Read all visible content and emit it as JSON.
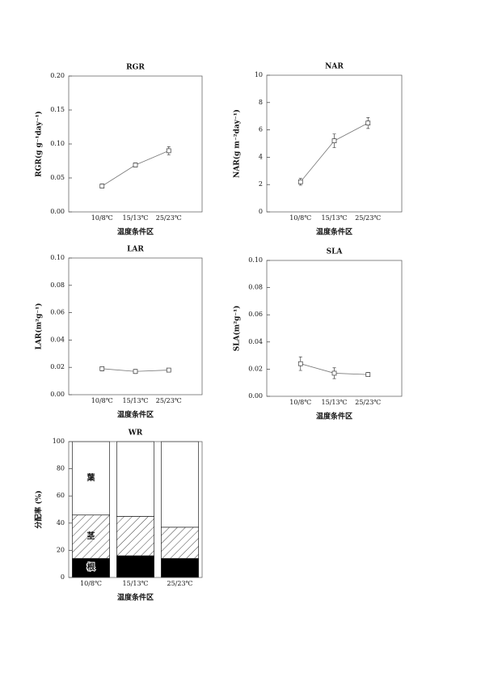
{
  "chart_data": [
    {
      "type": "line",
      "title": "RGR",
      "ylabel": "RGR(g g⁻¹day⁻¹)",
      "xlabel": "温度条件区",
      "categories": [
        "10/8℃",
        "15/13℃",
        "25/23℃"
      ],
      "values": [
        0.038,
        0.069,
        0.09
      ],
      "errors": [
        0.003,
        0.003,
        0.006
      ],
      "color": "#777777",
      "ylim": [
        0,
        0.2
      ],
      "yticks": [
        {
          "value": 0,
          "label": "0.00"
        },
        {
          "value": 0.05,
          "label": "0.05"
        },
        {
          "value": 0.1,
          "label": "0.10"
        },
        {
          "value": 0.15,
          "label": "0.15"
        },
        {
          "value": 0.2,
          "label": "0.20"
        }
      ]
    },
    {
      "type": "line",
      "title": "NAR",
      "ylabel": "NAR(g m⁻²day⁻¹)",
      "xlabel": "温度条件区",
      "categories": [
        "10/8℃",
        "15/13℃",
        "25/23℃"
      ],
      "values": [
        2.2,
        5.2,
        6.5
      ],
      "errors": [
        0.25,
        0.5,
        0.4
      ],
      "color": "#777777",
      "ylim": [
        0,
        10
      ],
      "yticks": [
        0,
        2,
        4,
        6,
        8,
        10
      ]
    },
    {
      "type": "line",
      "title": "LAR",
      "ylabel": "LAR(m²g⁻¹)",
      "xlabel": "温度条件区",
      "categories": [
        "10/8℃",
        "15/13℃",
        "25/23℃"
      ],
      "values": [
        0.019,
        0.017,
        0.018
      ],
      "errors": [
        0.0015,
        0.0015,
        0.001
      ],
      "color": "#777777",
      "ylim": [
        0,
        0.1
      ],
      "yticks": [
        {
          "value": 0,
          "label": "0.00"
        },
        {
          "value": 0.02,
          "label": "0.02"
        },
        {
          "value": 0.04,
          "label": "0.04"
        },
        {
          "value": 0.06,
          "label": "0.06"
        },
        {
          "value": 0.08,
          "label": "0.08"
        },
        {
          "value": 0.1,
          "label": "0.10"
        }
      ]
    },
    {
      "type": "line",
      "title": "SLA",
      "ylabel": "SLA(m²g⁻¹)",
      "xlabel": "温度条件区",
      "categories": [
        "10/8℃",
        "15/13℃",
        "25/23℃"
      ],
      "values": [
        0.024,
        0.017,
        0.016
      ],
      "errors": [
        0.005,
        0.004,
        0.0015
      ],
      "color": "#777777",
      "ylim": [
        0,
        0.1
      ],
      "yticks": [
        {
          "value": 0,
          "label": "0.00"
        },
        {
          "value": 0.02,
          "label": "0.02"
        },
        {
          "value": 0.04,
          "label": "0.04"
        },
        {
          "value": 0.06,
          "label": "0.06"
        },
        {
          "value": 0.08,
          "label": "0.08"
        },
        {
          "value": 0.1,
          "label": "0.10"
        }
      ]
    },
    {
      "type": "stacked_bar",
      "title": "WR",
      "ylabel": "分配率 (%)",
      "xlabel": "温度条件区",
      "categories": [
        "10/8℃",
        "15/13℃",
        "25/23℃"
      ],
      "series": [
        {
          "name": "根",
          "color": "#000000",
          "values": [
            14,
            16,
            14
          ]
        },
        {
          "name": "茎",
          "color": "#ffffff",
          "pattern": "hatch",
          "values": [
            32,
            29,
            23
          ]
        },
        {
          "name": "葉",
          "color": "#ffffff",
          "values": [
            54,
            55,
            63
          ]
        }
      ],
      "ylim": [
        0,
        100
      ],
      "yticks": [
        0,
        20,
        40,
        60,
        80,
        100
      ]
    }
  ]
}
